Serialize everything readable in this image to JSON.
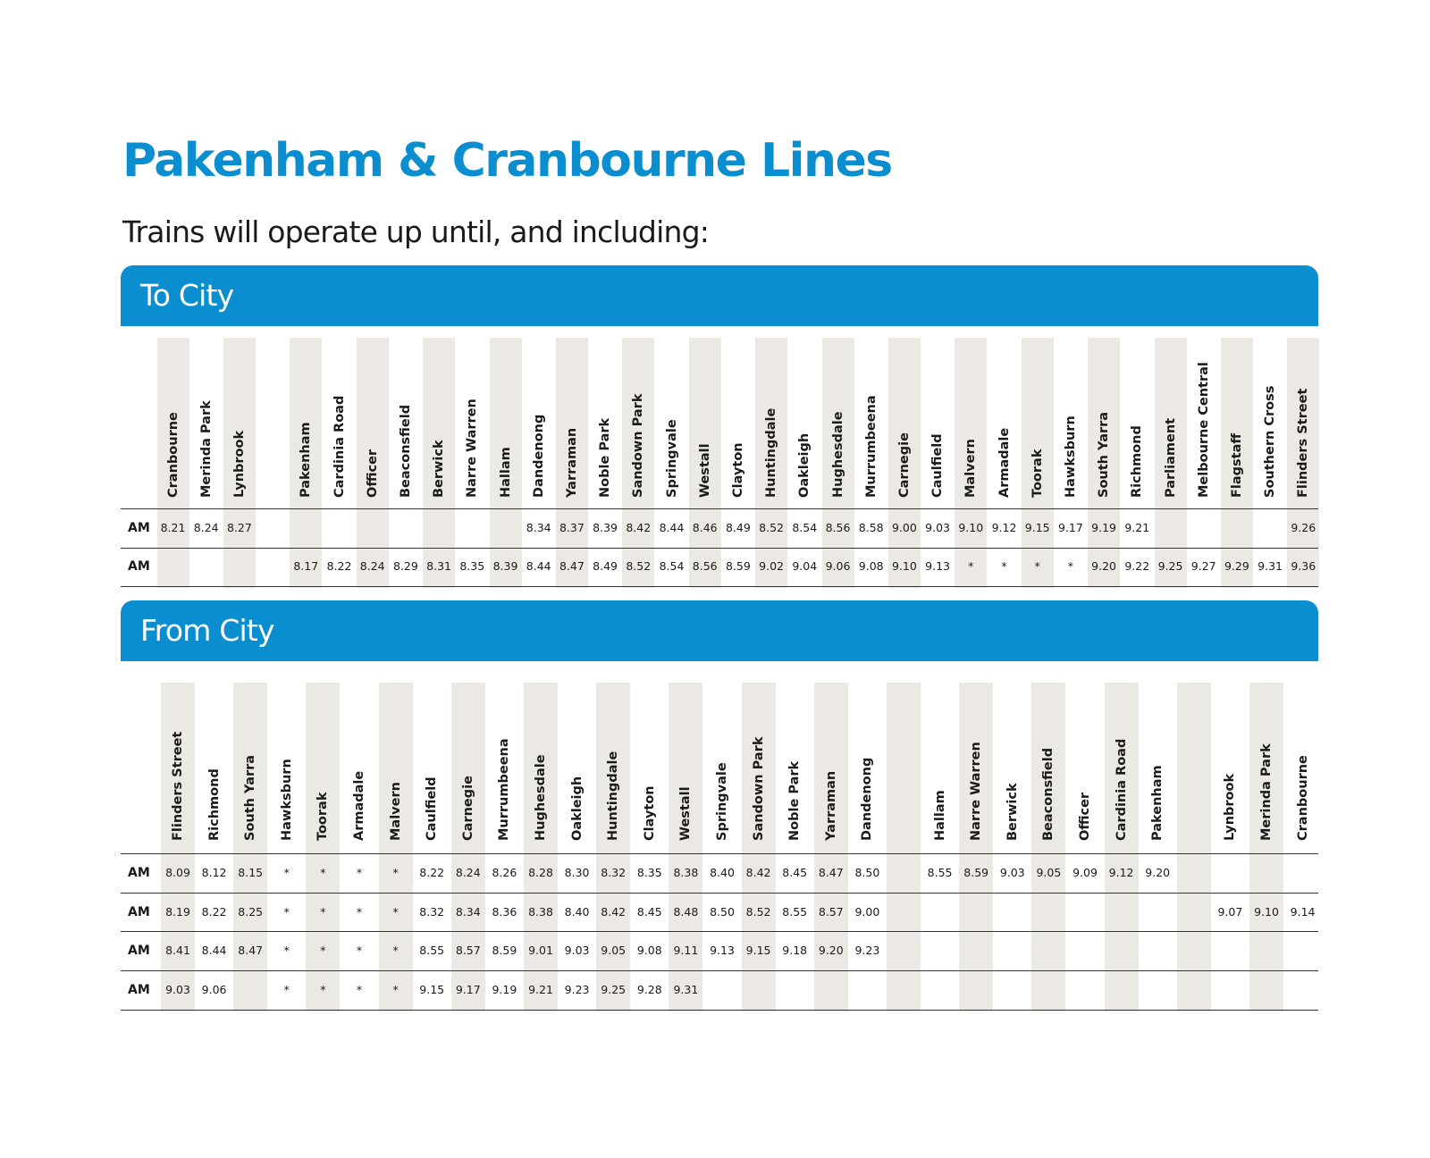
{
  "title": "Pakenham & Cranbourne Lines",
  "subtitle": "Trains will operate up until, and including:",
  "to_city": {
    "heading": "To City",
    "stations": [
      "Cranbourne",
      "Merinda Park",
      "Lynbrook",
      "",
      "Pakenham",
      "Cardinia Road",
      "Officer",
      "Beaconsfield",
      "Berwick",
      "Narre Warren",
      "Hallam",
      "Dandenong",
      "Yarraman",
      "Noble Park",
      "Sandown Park",
      "Springvale",
      "Westall",
      "Clayton",
      "Huntingdale",
      "Oakleigh",
      "Hughesdale",
      "Murrumbeena",
      "Carnegie",
      "Caulfield",
      "Malvern",
      "Armadale",
      "Toorak",
      "Hawksburn",
      "South Yarra",
      "Richmond",
      "Parliament",
      "Melbourne Central",
      "Flagstaff",
      "Southern Cross",
      "Flinders Street"
    ],
    "rows": [
      {
        "label": "AM",
        "times": [
          "8.21",
          "8.24",
          "8.27",
          "",
          "",
          "",
          "",
          "",
          "",
          "",
          "",
          "8.34",
          "8.37",
          "8.39",
          "8.42",
          "8.44",
          "8.46",
          "8.49",
          "8.52",
          "8.54",
          "8.56",
          "8.58",
          "9.00",
          "9.03",
          "9.10",
          "9.12",
          "9.15",
          "9.17",
          "9.19",
          "9.21",
          "",
          "",
          "",
          "",
          "9.26"
        ]
      },
      {
        "label": "AM",
        "times": [
          "",
          "",
          "",
          "",
          "8.17",
          "8.22",
          "8.24",
          "8.29",
          "8.31",
          "8.35",
          "8.39",
          "8.44",
          "8.47",
          "8.49",
          "8.52",
          "8.54",
          "8.56",
          "8.59",
          "9.02",
          "9.04",
          "9.06",
          "9.08",
          "9.10",
          "9.13",
          "*",
          "*",
          "*",
          "*",
          "9.20",
          "9.22",
          "9.25",
          "9.27",
          "9.29",
          "9.31",
          "9.36"
        ]
      }
    ]
  },
  "from_city": {
    "heading": "From City",
    "stations": [
      "Flinders Street",
      "Richmond",
      "South Yarra",
      "Hawksburn",
      "Toorak",
      "Armadale",
      "Malvern",
      "Caulfield",
      "Carnegie",
      "Murrumbeena",
      "Hughesdale",
      "Oakleigh",
      "Huntingdale",
      "Clayton",
      "Westall",
      "Springvale",
      "Sandown Park",
      "Noble Park",
      "Yarraman",
      "Dandenong",
      "",
      "Hallam",
      "Narre Warren",
      "Berwick",
      "Beaconsfield",
      "Officer",
      "Cardinia Road",
      "Pakenham",
      "",
      "Lynbrook",
      "Merinda Park",
      "Cranbourne"
    ],
    "rows": [
      {
        "label": "AM",
        "times": [
          "8.09",
          "8.12",
          "8.15",
          "*",
          "*",
          "*",
          "*",
          "8.22",
          "8.24",
          "8.26",
          "8.28",
          "8.30",
          "8.32",
          "8.35",
          "8.38",
          "8.40",
          "8.42",
          "8.45",
          "8.47",
          "8.50",
          "",
          "8.55",
          "8.59",
          "9.03",
          "9.05",
          "9.09",
          "9.12",
          "9.20",
          "",
          "",
          "",
          ""
        ]
      },
      {
        "label": "AM",
        "times": [
          "8.19",
          "8.22",
          "8.25",
          "*",
          "*",
          "*",
          "*",
          "8.32",
          "8.34",
          "8.36",
          "8.38",
          "8.40",
          "8.42",
          "8.45",
          "8.48",
          "8.50",
          "8.52",
          "8.55",
          "8.57",
          "9.00",
          "",
          "",
          "",
          "",
          "",
          "",
          "",
          "",
          "",
          "9.07",
          "9.10",
          "9.14"
        ]
      },
      {
        "label": "AM",
        "times": [
          "8.41",
          "8.44",
          "8.47",
          "*",
          "*",
          "*",
          "*",
          "8.55",
          "8.57",
          "8.59",
          "9.01",
          "9.03",
          "9.05",
          "9.08",
          "9.11",
          "9.13",
          "9.15",
          "9.18",
          "9.20",
          "9.23",
          "",
          "",
          "",
          "",
          "",
          "",
          "",
          "",
          "",
          "",
          "",
          ""
        ]
      },
      {
        "label": "AM",
        "times": [
          "9.03",
          "9.06",
          "",
          "*",
          "*",
          "*",
          "*",
          "9.15",
          "9.17",
          "9.19",
          "9.21",
          "9.23",
          "9.25",
          "9.28",
          "9.31",
          "",
          "",
          "",
          "",
          "",
          "",
          "",
          "",
          "",
          "",
          "",
          "",
          "",
          "",
          "",
          "",
          ""
        ]
      }
    ]
  }
}
